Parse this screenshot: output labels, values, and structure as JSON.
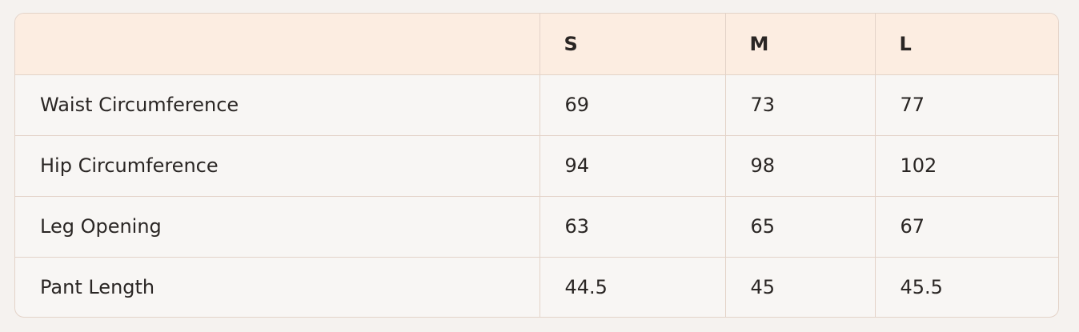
{
  "table": {
    "headers": [
      "",
      "S",
      "M",
      "L"
    ],
    "rows": [
      {
        "label": "Waist Circumference",
        "values": [
          "69",
          "73",
          "77"
        ]
      },
      {
        "label": "Hip Circumference",
        "values": [
          "94",
          "98",
          "102"
        ]
      },
      {
        "label": "Leg Opening",
        "values": [
          "63",
          "65",
          "67"
        ]
      },
      {
        "label": "Pant Length",
        "values": [
          "44.5",
          "45",
          "45.5"
        ]
      }
    ]
  },
  "colors": {
    "header_bg": "#fcede1",
    "body_bg": "#f8f6f4",
    "border": "#e3d3c8",
    "page_bg": "#f5f2ef"
  }
}
